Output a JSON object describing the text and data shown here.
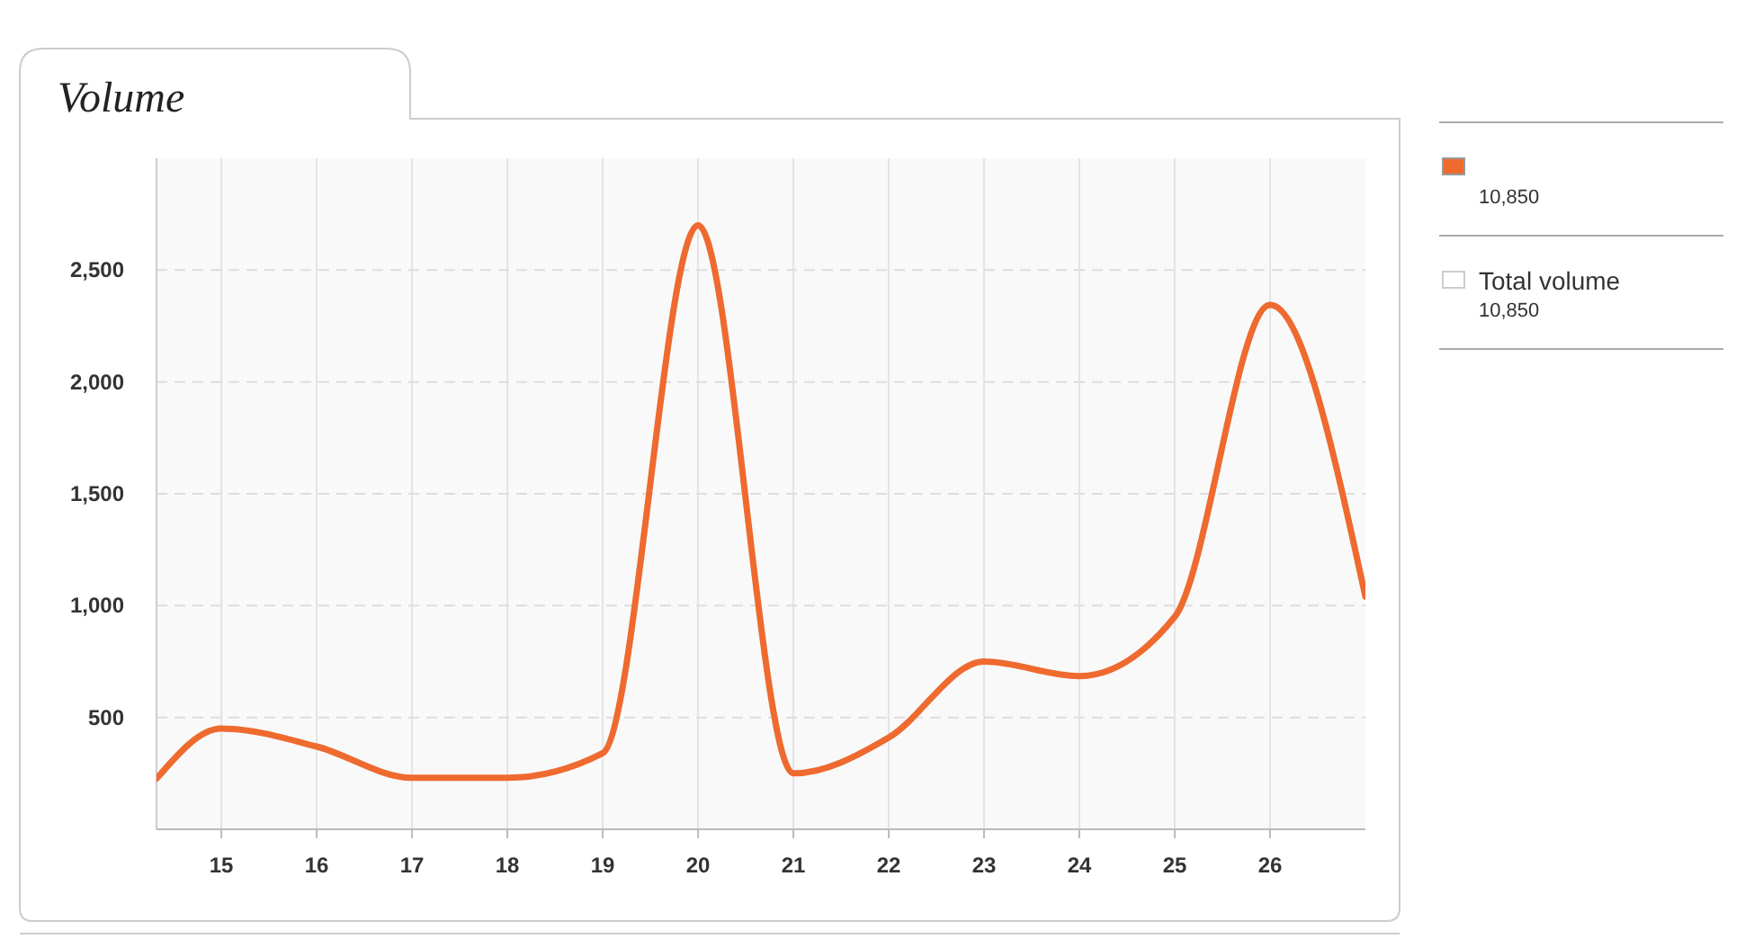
{
  "chart_data": {
    "type": "line",
    "title": "Volume",
    "x": [
      14.32,
      15,
      16,
      17,
      18,
      19,
      20,
      21,
      22,
      23,
      24,
      25,
      26,
      27
    ],
    "series": [
      {
        "color": "#ee6a2f",
        "values": [
          226,
          450,
          370,
          230,
          230,
          340,
          2700,
          250,
          410,
          750,
          685,
          950,
          2345,
          1040
        ]
      }
    ],
    "xlim": [
      14.32,
      27
    ],
    "xticks": [
      15,
      16,
      17,
      18,
      19,
      20,
      21,
      22,
      23,
      24,
      25,
      26
    ],
    "ylim": [
      0,
      3000
    ],
    "yticks": [
      {
        "value": 500,
        "label": "500"
      },
      {
        "value": 1000,
        "label": "1,000"
      },
      {
        "value": 1500,
        "label": "1,500"
      },
      {
        "value": 2000,
        "label": "2,000"
      },
      {
        "value": 2500,
        "label": "2,500"
      }
    ],
    "grid": true,
    "marker": "none",
    "line_style": "solid",
    "annotations": [
      "10,850",
      "Total volume",
      "10,850"
    ]
  }
}
